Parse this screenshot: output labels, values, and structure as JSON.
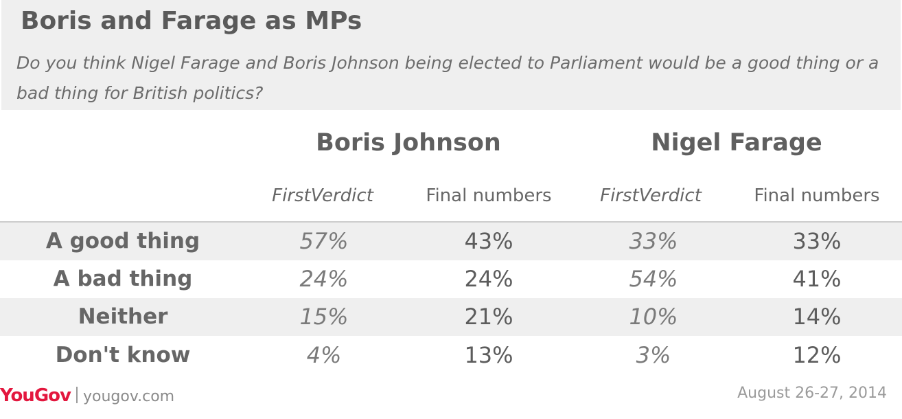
{
  "chart_data": {
    "type": "table",
    "title": "Boris and Farage as MPs",
    "subtitle": "Do you think Nigel Farage and Boris Johnson being elected to Parliament would be a good thing or a bad thing for British politics?",
    "column_groups": [
      {
        "name": "Boris Johnson",
        "columns": [
          "FirstVerdict",
          "Final numbers"
        ]
      },
      {
        "name": "Nigel Farage",
        "columns": [
          "FirstVerdict",
          "Final numbers"
        ]
      }
    ],
    "rows": [
      {
        "label": "A good thing",
        "cells": [
          "57%",
          "43%",
          "33%",
          "33%"
        ]
      },
      {
        "label": "A bad thing",
        "cells": [
          "24%",
          "24%",
          "54%",
          "41%"
        ]
      },
      {
        "label": "Neither",
        "cells": [
          "15%",
          "21%",
          "10%",
          "14%"
        ]
      },
      {
        "label": "Don't know",
        "cells": [
          "4%",
          "13%",
          "3%",
          "12%"
        ]
      }
    ]
  },
  "footer": {
    "logo": "YouGov",
    "site": "yougov.com",
    "date": "August 26-27, 2014"
  },
  "colors": {
    "brand": "#e3173e",
    "header_background": "#efefef",
    "text": "#666666"
  }
}
